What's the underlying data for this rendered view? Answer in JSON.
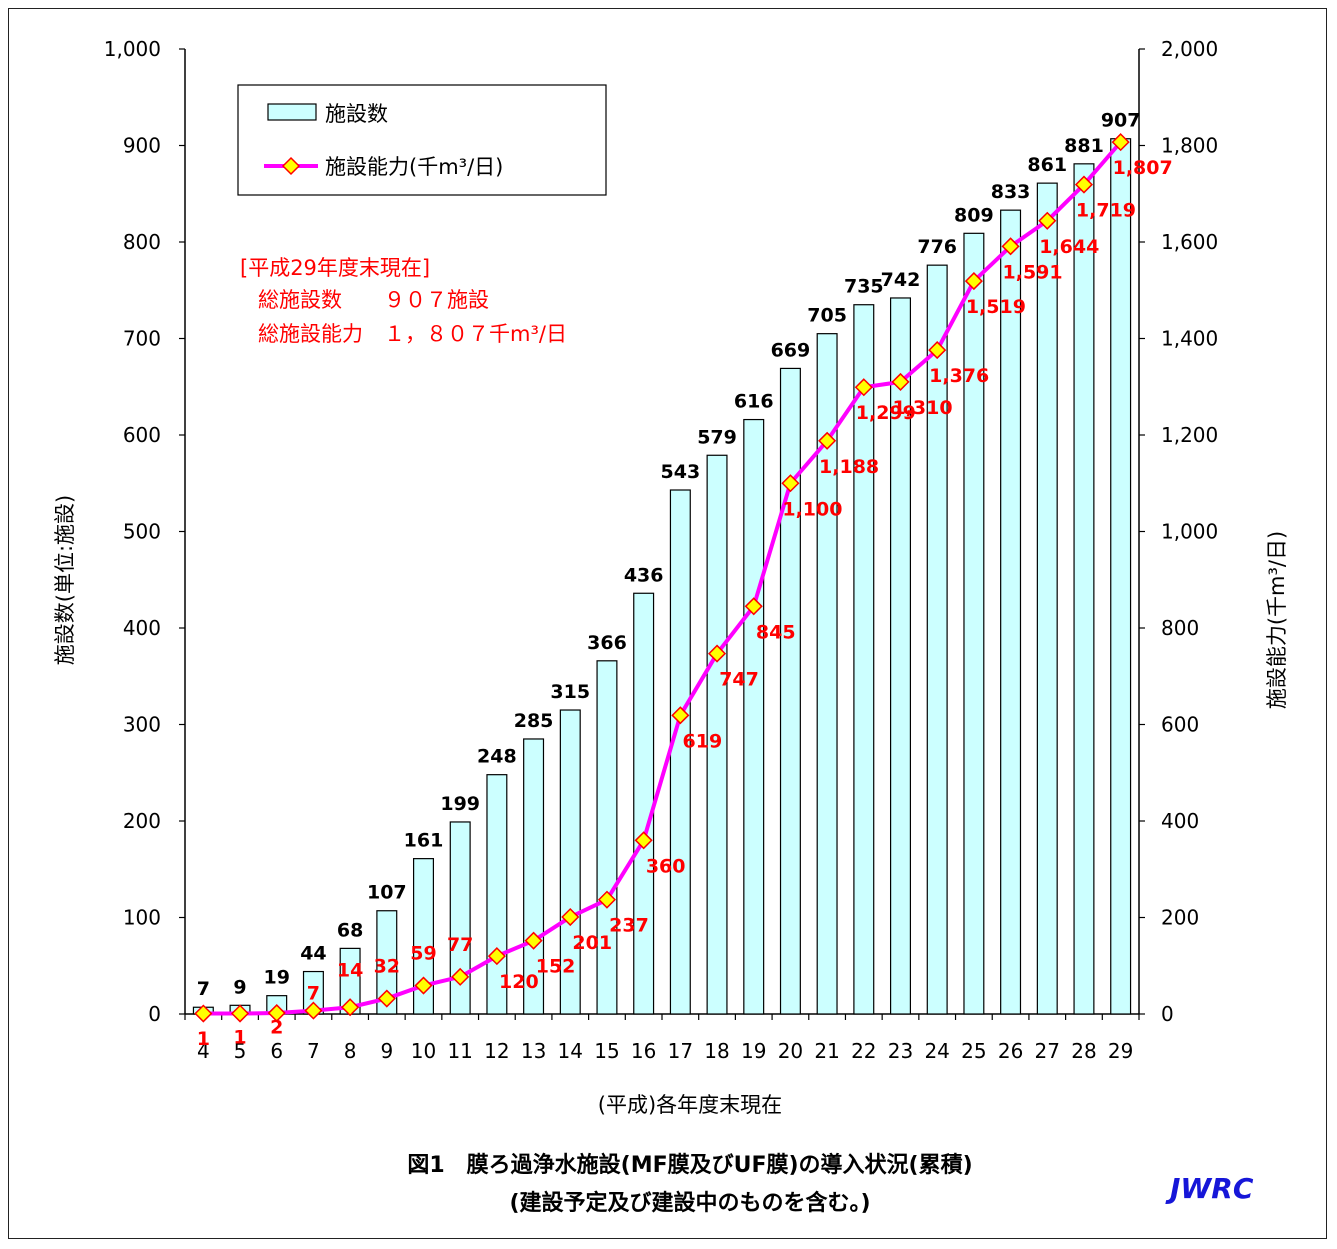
{
  "chart_data": {
    "type": "bar",
    "categories": [
      "4",
      "5",
      "6",
      "7",
      "8",
      "9",
      "10",
      "11",
      "12",
      "13",
      "14",
      "15",
      "16",
      "17",
      "18",
      "19",
      "20",
      "21",
      "22",
      "23",
      "24",
      "25",
      "26",
      "27",
      "28",
      "29"
    ],
    "series": [
      {
        "name": "施設数",
        "type": "bar",
        "axis": "left",
        "values": [
          7,
          9,
          19,
          44,
          68,
          107,
          161,
          199,
          248,
          285,
          315,
          366,
          436,
          543,
          579,
          616,
          669,
          705,
          735,
          742,
          776,
          809,
          833,
          861,
          881,
          907
        ],
        "labels": [
          "7",
          "9",
          "19",
          "44",
          "68",
          "107",
          "161",
          "199",
          "248",
          "285",
          "315",
          "366",
          "436",
          "543",
          "579",
          "616",
          "669",
          "705",
          "735",
          "742",
          "776",
          "809",
          "833",
          "861",
          "881",
          "907"
        ]
      },
      {
        "name": "施設能力(千m³/日)",
        "type": "line",
        "axis": "right",
        "values": [
          1,
          1,
          2,
          7,
          14,
          32,
          59,
          77,
          120,
          152,
          201,
          237,
          360,
          619,
          747,
          845,
          1100,
          1188,
          1299,
          1310,
          1376,
          1519,
          1591,
          1644,
          1719,
          1807
        ],
        "labels": [
          "1",
          "1",
          "2",
          "7",
          "14",
          "32",
          "59",
          "77",
          "120",
          "152",
          "201",
          "237",
          "360",
          "619",
          "747",
          "845",
          "1,100",
          "1,188",
          "1,299",
          "1,310",
          "1,376",
          "1,519",
          "1,591",
          "1,644",
          "1,719",
          "1,807"
        ]
      }
    ],
    "ylim_left": [
      0,
      1000
    ],
    "ylim_right": [
      0,
      2000
    ],
    "left_ticks": [
      "0",
      "100",
      "200",
      "300",
      "400",
      "500",
      "600",
      "700",
      "800",
      "900",
      "1,000"
    ],
    "right_ticks": [
      "0",
      "200",
      "400",
      "600",
      "800",
      "1,000",
      "1,200",
      "1,400",
      "1,600",
      "1,800",
      "2,000"
    ],
    "ylabel_left": "施設数(単位:施設)",
    "ylabel_right": "施設能力(千m³/日)",
    "xlabel": "(平成)各年度末現在",
    "legend_placement": "top-left",
    "colors": {
      "bar_fill": "#ccffff",
      "bar_stroke": "#000000",
      "line": "#ff00ff",
      "marker_fill": "#ffff00",
      "marker_stroke": "#ff0000",
      "line_labels": "#ff0000"
    }
  },
  "annotation": {
    "line1": "[平成29年度末現在]",
    "line2": "総施設数　　９０７施設",
    "line3": "総施設能力　１，８０７千m³/日"
  },
  "caption": {
    "line1": "図1　膜ろ過浄水施設(MF膜及びUF膜)の導入状況(累積)",
    "line2": "(建設予定及び建設中のものを含む。)"
  },
  "logo": "JWRC"
}
